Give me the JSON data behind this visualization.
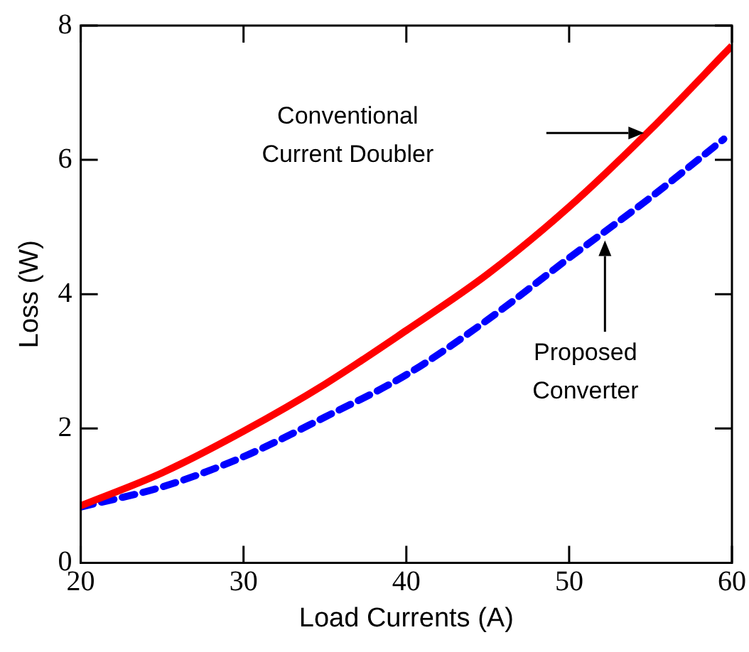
{
  "chart_data": {
    "type": "line",
    "xlabel": "Load Currents (A)",
    "ylabel": "Loss (W)",
    "xlim": [
      20,
      60
    ],
    "xticks": [
      20,
      30,
      40,
      50,
      60
    ],
    "ylim": [
      0,
      8
    ],
    "yticks": [
      0,
      2,
      4,
      6,
      8
    ],
    "grid": false,
    "legend": false,
    "marker": "none",
    "series": [
      {
        "color": "#ff0000",
        "line_style": "solid",
        "x": [
          20,
          25,
          30,
          35,
          40,
          45,
          50,
          55,
          60
        ],
        "values": [
          0.85,
          1.34,
          1.96,
          2.66,
          3.46,
          4.3,
          5.3,
          6.45,
          7.7
        ]
      },
      {
        "color": "#0000ff",
        "line_style": "dashed",
        "x": [
          20,
          25,
          30,
          35,
          40,
          45,
          50,
          55,
          59.5
        ],
        "values": [
          0.83,
          1.13,
          1.58,
          2.17,
          2.8,
          3.62,
          4.54,
          5.44,
          6.31
        ]
      }
    ],
    "annotations": [
      "Conventional\nCurrent Doubler",
      "Proposed\nConverter"
    ]
  }
}
